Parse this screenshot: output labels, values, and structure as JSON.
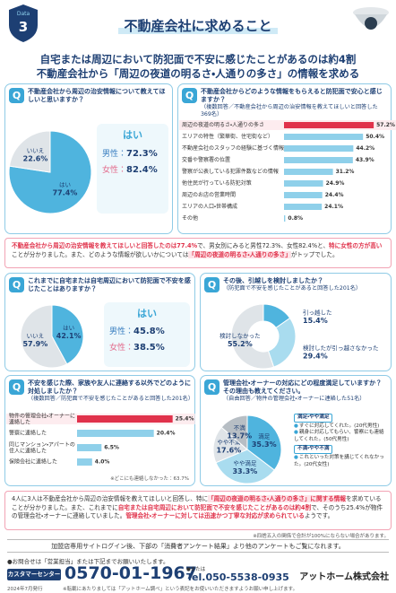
{
  "header": {
    "badge_label": "Data",
    "badge_number": "3",
    "title": "不動産会社に求めること"
  },
  "headline": [
    "自宅または周辺において防犯面で不安に感じたことがあるのは約4割",
    "不動産会社から「周辺の夜道の明るさ・人通りの多さ」の情報を求める"
  ],
  "panels": [
    {
      "badge": "Q",
      "question": "不動産会社から周辺の治安情報について教えてほしいと思いますか？",
      "chart": {
        "type": "pie",
        "categories": [
          "はい",
          "いいえ"
        ],
        "values": [
          77.4,
          22.6
        ],
        "value_labels": [
          "77.4%",
          "22.6%"
        ],
        "colors": [
          "#4fb4de",
          "#dfe4e8"
        ]
      },
      "breakdown": {
        "title": "はい",
        "rows": [
          {
            "label": "男性：",
            "value": "72.3%"
          },
          {
            "label": "女性：",
            "value": "82.4%"
          }
        ]
      }
    },
    {
      "badge": "Q",
      "question": "不動産会社からどのような情報をもらえると防犯面で安心と感じますか？",
      "note": "（複数回答／不動産会社から周辺の治安情報を教えてほしいと回答した369名）",
      "chart": {
        "type": "bar",
        "categories": [
          "周辺の夜道の明るさ・人通りの多さ",
          "エリアの特性（繁華街、住宅街など）",
          "不動産会社のスタッフの経験に基づく情報",
          "交番や警察署の位置",
          "警察が公表している犯罪件数などの情報",
          "他住民が行っている防犯対策",
          "周辺のお店の営業時間",
          "エリアの人口・世帯構成",
          "その他"
        ],
        "values": [
          57.2,
          50.4,
          44.2,
          43.9,
          31.2,
          24.9,
          24.4,
          24.1,
          0.8
        ],
        "value_labels": [
          "57.2%",
          "50.4%",
          "44.2%",
          "43.9%",
          "31.2%",
          "24.9%",
          "24.4%",
          "24.1%",
          "0.8%"
        ],
        "colors": [
          "#e0324b",
          "#8fd0ea",
          "#8fd0ea",
          "#8fd0ea",
          "#8fd0ea",
          "#8fd0ea",
          "#8fd0ea",
          "#8fd0ea",
          "#8fd0ea"
        ]
      }
    },
    {
      "badge": "Q",
      "question": "これまでに自宅または自宅周辺において防犯面で不安を感じたことはありますか？",
      "chart": {
        "type": "pie",
        "categories": [
          "はい",
          "いいえ"
        ],
        "values": [
          42.1,
          57.9
        ],
        "value_labels": [
          "42.1%",
          "57.9%"
        ],
        "colors": [
          "#4fb4de",
          "#dfe4e8"
        ]
      },
      "breakdown": {
        "title": "はい",
        "rows": [
          {
            "label": "男性：",
            "value": "45.8%"
          },
          {
            "label": "女性：",
            "value": "38.5%"
          }
        ]
      }
    },
    {
      "badge": "Q",
      "question": "その後、引越しを検討しましたか？",
      "note": "（防犯面で不安を感じたことがあると回答した201名）",
      "chart": {
        "type": "pie",
        "donut": true,
        "categories": [
          "引っ越した",
          "検討したが引っ越さなかった",
          "検討しなかった"
        ],
        "values": [
          15.4,
          29.4,
          55.2
        ],
        "value_labels": [
          "15.4%",
          "29.4%",
          "55.2%"
        ],
        "colors": [
          "#4fb4de",
          "#a9dcef",
          "#dfe4e8"
        ]
      }
    },
    {
      "badge": "Q",
      "question": "不安を感じた際、家族や友人に連絡する以外でどのように対処しましたか？",
      "note": "（複数回答／防犯面で不安を感じたことがあると回答した201名）",
      "chart": {
        "type": "bar",
        "categories": [
          "物件の管理会社・オーナーに連絡した",
          "警察に連絡した",
          "同じマンション・アパートの住人に連絡した",
          "保険会社に連絡した"
        ],
        "values": [
          25.4,
          20.4,
          6.5,
          4.0
        ],
        "value_labels": [
          "25.4%",
          "20.4%",
          "6.5%",
          "4.0%"
        ],
        "colors": [
          "#e0324b",
          "#8fd0ea",
          "#8fd0ea",
          "#8fd0ea"
        ]
      },
      "footnote": "※どこにも連絡しなかった：63.7%"
    },
    {
      "badge": "Q",
      "question": "管理会社・オーナーの対応にどの程度満足していますか？その理由も教えてください。",
      "note": "（自由回答／物件の管理会社・オーナーに連絡した51名）",
      "chart": {
        "type": "pie",
        "categories": [
          "満足",
          "やや満足",
          "やや不満",
          "不満"
        ],
        "values": [
          35.3,
          33.3,
          17.6,
          13.7
        ],
        "value_labels": [
          "35.3%",
          "33.3%",
          "17.6%",
          "13.7%"
        ],
        "colors": [
          "#4fb4de",
          "#a9dcef",
          "#dfe4e8",
          "#b7bec4"
        ]
      },
      "comments": [
        {
          "title": "満足・やや満足",
          "items": [
            "すぐに対応してくれた。(20代男性)",
            "親身に対応してもらい、警察にも連絡してくれた。(50代男性)"
          ]
        },
        {
          "title": "不満・やや不満",
          "items": [
            "これといった対策を講じてくれなかった。(20代女性)"
          ]
        }
      ]
    }
  ],
  "note1": [
    "不動産会社から周辺の治安情報を教えてほしいと回答したのは77.4%",
    "で、男女別にみると男性72.3%、女性82.4%と、",
    "特に女性の方が高い",
    "ことが分かりました。また、どのような情報が欲しいかについては",
    "「周辺の夜道の明るさ・人通りの多さ」",
    "がトップでした。"
  ],
  "note2": [
    "4人に3人は不動産会社から周辺の治安情報を教えてほしいと回答し、特に",
    "「周辺の夜道の明るさ・人通りの多さ」に関する情報",
    "を求めていることが分かりました。また、これまでに",
    "自宅または自宅周辺において防犯面で不安を感じたことがあるのは約4割",
    "で、そのうち25.4%が物件の管理会社・オーナーに連絡していました。",
    "管理会社・オーナーに対しては迅速かつ丁寧な対応が求められている",
    "ようです。"
  ],
  "footnote": "※四捨五入の関係で合計が100%にならない場合があります。",
  "footer": {
    "site_notice": "加盟店専用サイトログイン後、下部の「消費者アンケート結果」より他のアンケートもご覧になれます。",
    "contact_notice": "●お問合せは「営業担当」または下記までお願いいたします。",
    "center_label": "カスタマーセンター",
    "phone": "0570-01-1967",
    "tel_prefix": "●または",
    "tel": "Tel.050-5538-0935",
    "company": "アットホーム株式会社",
    "issued": "2024年7月発行",
    "reprint_note": "※転載にあたりましては「アットホーム調べ」という表記をお使いいただきますようお願い申し上げます。"
  }
}
